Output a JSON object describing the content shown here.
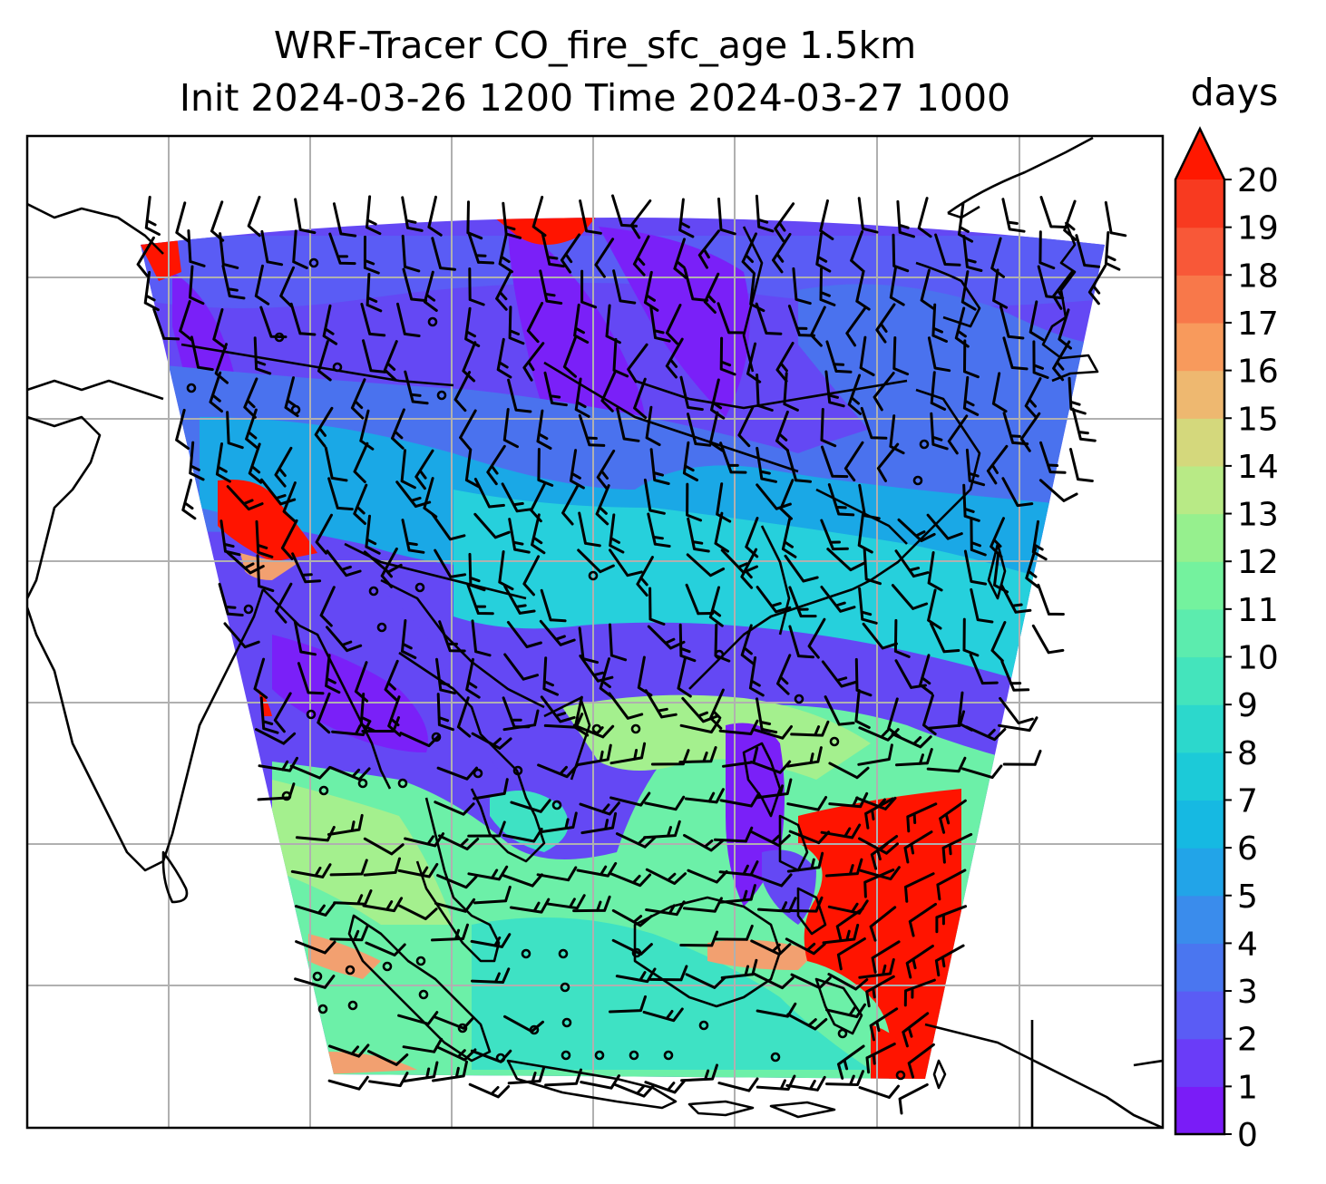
{
  "title_line1": "WRF-Tracer CO_fire_sfc_age 1.5km",
  "title_line2": "Init 2024-03-26 1200 Time 2024-03-27 1000",
  "colorbar": {
    "units": "days",
    "ticks": [
      "0",
      "1",
      "2",
      "3",
      "4",
      "5",
      "6",
      "7",
      "8",
      "9",
      "10",
      "11",
      "12",
      "13",
      "14",
      "15",
      "16",
      "17",
      "18",
      "19",
      "20"
    ],
    "extend": "max",
    "colors": [
      "#7a1cf7",
      "#6a3cf8",
      "#5a5cf5",
      "#4a76f0",
      "#3a8cec",
      "#22a4e8",
      "#16b9e2",
      "#1ccad8",
      "#2cd8cc",
      "#44e4bc",
      "#5cecae",
      "#74f29e",
      "#96f08e",
      "#b8ea86",
      "#d4d87c",
      "#eeb870",
      "#f89a5c",
      "#f8784a",
      "#f85838",
      "#f83a20"
    ],
    "extend_color": "#ff1800"
  },
  "map": {
    "gridlines": true,
    "field_colors": {
      "deep_violet": "#7a20f8",
      "violet": "#6448f4",
      "blue": "#4a72ee",
      "sky": "#1aa8e6",
      "cyan": "#26d0dc",
      "aqua": "#3ee2c4",
      "mint": "#6cf0a8",
      "light_green": "#a4f08e",
      "orange": "#f2a070",
      "red": "#ff1400"
    }
  }
}
